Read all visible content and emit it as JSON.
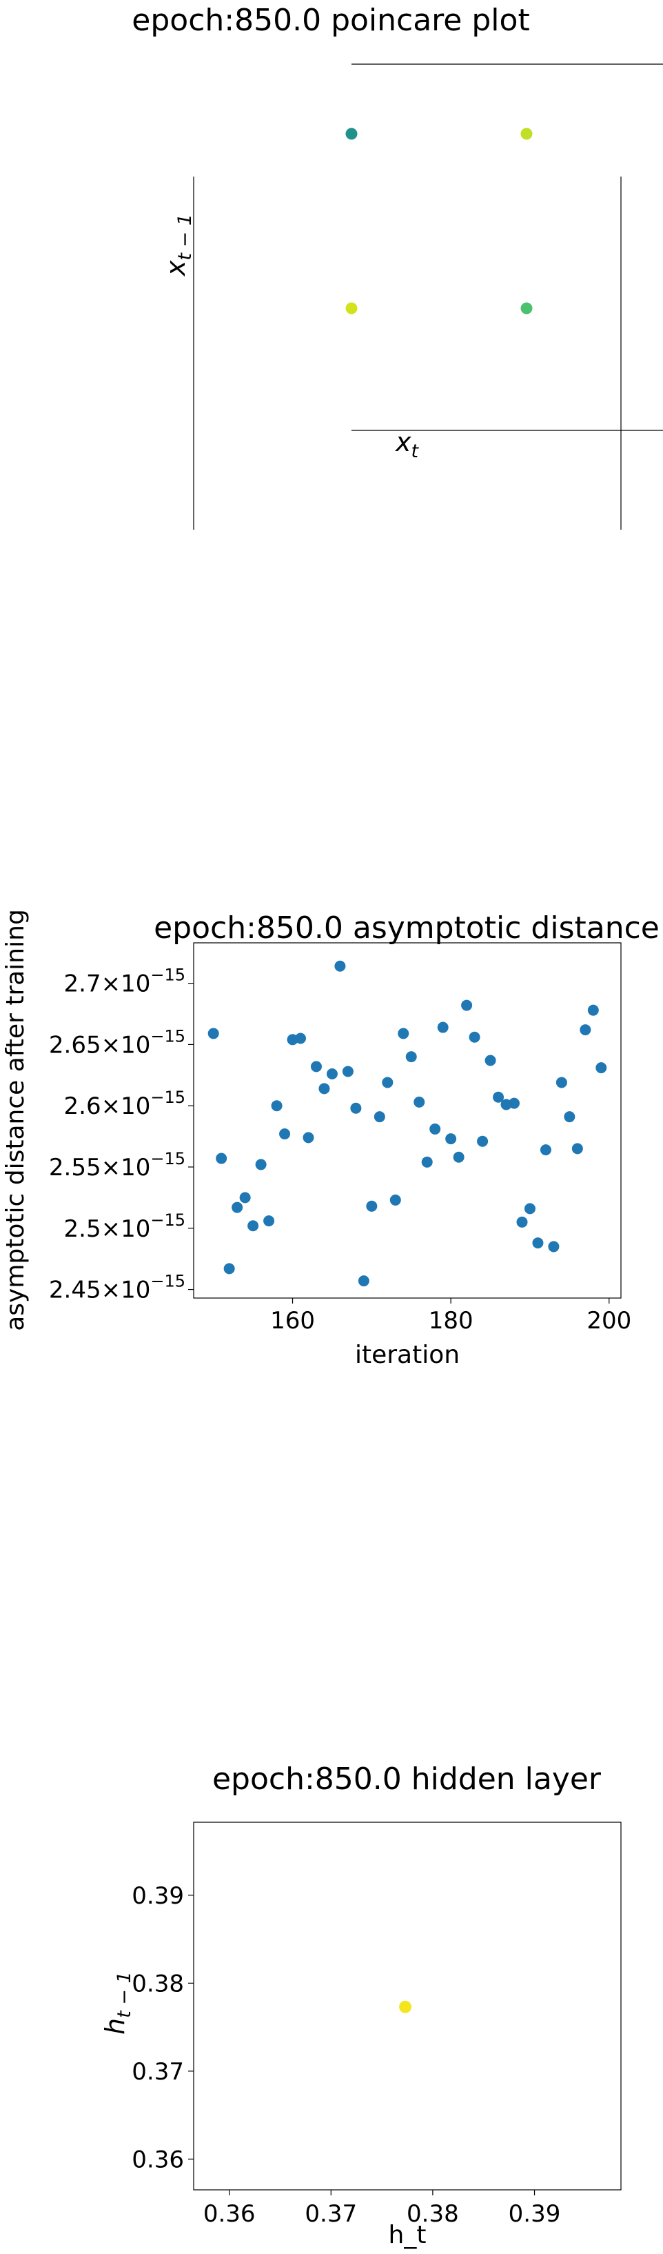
{
  "chart_data": [
    {
      "type": "scatter",
      "title": "epoch:850.0 poincare plot",
      "xlabel": "x",
      "xlabel_sub": "t",
      "ylabel": "x",
      "ylabel_sub": "t − 1",
      "grid": false,
      "points": [
        {
          "x": 0,
          "y": 1,
          "color": "#21918c"
        },
        {
          "x": 1,
          "y": 1,
          "color": "#c0df25"
        },
        {
          "x": 0,
          "y": 0,
          "color": "#d2e21b"
        },
        {
          "x": 1,
          "y": 0,
          "color": "#4ac16d"
        }
      ]
    },
    {
      "type": "scatter",
      "title": "epoch:850.0 asymptotic distance",
      "xlabel": "iteration",
      "ylabel": "asymptotic distance after training",
      "xlim": [
        147.5,
        201.5
      ],
      "ylim": [
        2.443,
        2.733
      ],
      "y_exponent": "−15",
      "xticks": [
        160,
        180,
        200
      ],
      "yticks": [
        2.45,
        2.5,
        2.55,
        2.6,
        2.65,
        2.7
      ],
      "ytick_labels": [
        "2.45",
        "2.5",
        "2.55",
        "2.6",
        "2.65",
        "2.7"
      ],
      "tick_times": "×",
      "tick_base": "10",
      "marker_color": "#1f77b4",
      "grid": false,
      "x": [
        150,
        151,
        152,
        153,
        154,
        155,
        156,
        157,
        158,
        159,
        160,
        161,
        162,
        163,
        164,
        165,
        166,
        167,
        168,
        169,
        170,
        171,
        172,
        173,
        174,
        175,
        176,
        177,
        178,
        179,
        180,
        181,
        182,
        183,
        184,
        185,
        186,
        187,
        188,
        189,
        190,
        191,
        192,
        193,
        194,
        195,
        196,
        197,
        198,
        199
      ],
      "y": [
        2.659,
        2.557,
        2.467,
        2.517,
        2.525,
        2.502,
        2.552,
        2.506,
        2.6,
        2.577,
        2.654,
        2.655,
        2.574,
        2.632,
        2.614,
        2.626,
        2.714,
        2.628,
        2.598,
        2.457,
        2.518,
        2.591,
        2.619,
        2.523,
        2.659,
        2.64,
        2.603,
        2.554,
        2.581,
        2.664,
        2.573,
        2.558,
        2.682,
        2.656,
        2.571,
        2.637,
        2.607,
        2.601,
        2.602,
        2.505,
        2.516,
        2.488,
        2.564,
        2.485,
        2.619,
        2.591,
        2.565,
        2.662,
        2.678,
        2.631
      ]
    },
    {
      "type": "scatter",
      "title": "epoch:850.0 hidden layer",
      "xlabel": "h_t",
      "ylabel": "h",
      "ylabel_sub": "t − 1",
      "xlim": [
        0.3565,
        0.3985
      ],
      "ylim": [
        0.3565,
        0.3983
      ],
      "xticks": [
        0.36,
        0.37,
        0.38,
        0.39
      ],
      "yticks": [
        0.36,
        0.37,
        0.38,
        0.39
      ],
      "xtick_labels": [
        "0.36",
        "0.37",
        "0.38",
        "0.39"
      ],
      "ytick_labels": [
        "0.36",
        "0.37",
        "0.38",
        "0.39"
      ],
      "grid": false,
      "points": [
        {
          "x": 0.3773,
          "y": 0.3773,
          "color": "#f4e61e"
        }
      ]
    }
  ]
}
